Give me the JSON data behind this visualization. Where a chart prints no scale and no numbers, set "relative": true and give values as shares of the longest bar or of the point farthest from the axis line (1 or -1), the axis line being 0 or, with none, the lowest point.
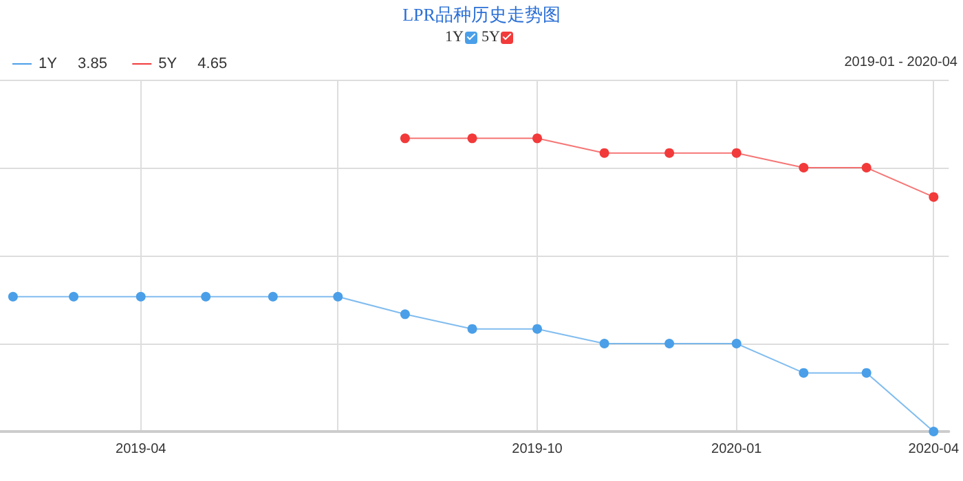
{
  "chart_data": {
    "type": "line",
    "title": "LPR品种历史走势图",
    "relative": true,
    "x": [
      "2019-02",
      "2019-03",
      "2019-04",
      "2019-05",
      "2019-06",
      "2019-07",
      "2019-08",
      "2019-09",
      "2019-10",
      "2019-11",
      "2019-12",
      "2020-01",
      "2020-02",
      "2020-03",
      "2020-04"
    ],
    "xlim": [
      "2019-01-26",
      "2020-04-08"
    ],
    "xticks": [
      "2019-04",
      {
        "value": "2019-07",
        "label": null
      },
      "2019-10",
      "2020-01",
      "2020-04"
    ],
    "series": [
      {
        "name": "1Y",
        "color": "#4a9fe8",
        "values": [
          0.46,
          0.46,
          0.46,
          0.46,
          0.46,
          0.46,
          0.4,
          0.35,
          0.35,
          0.3,
          0.3,
          0.3,
          0.2,
          0.2,
          0.0
        ]
      },
      {
        "name": "5Y",
        "color": "#f23a3a",
        "values": [
          null,
          null,
          null,
          null,
          null,
          null,
          1.0,
          1.0,
          1.0,
          0.95,
          0.95,
          0.95,
          0.9,
          0.9,
          0.8
        ]
      }
    ],
    "annotations": [
      "3.85",
      "4.65",
      "2019-01 - 2020-04"
    ],
    "legend": "top left",
    "grid": true,
    "marker": "circle",
    "line_style": "solid"
  }
}
